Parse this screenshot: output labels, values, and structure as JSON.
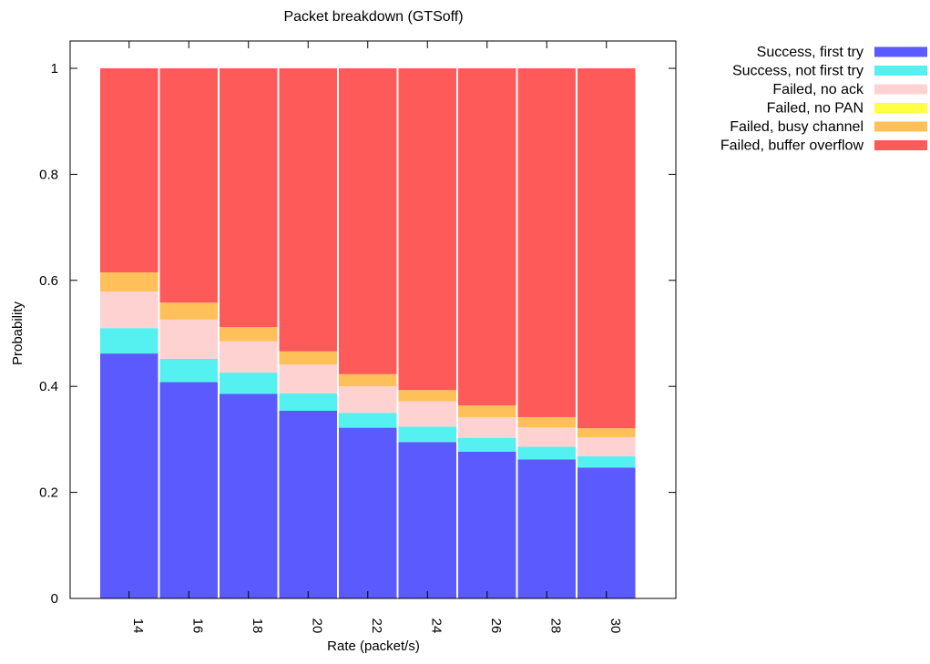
{
  "chart_data": {
    "type": "bar",
    "stacked": true,
    "title": "Packet breakdown (GTSoff)",
    "xlabel": "Rate (packet/s)",
    "ylabel": "Probability",
    "ylim": [
      0,
      1
    ],
    "yticks": [
      0,
      0.2,
      0.4,
      0.6,
      0.8,
      1
    ],
    "ytick_labels": [
      "0",
      "0.2",
      "0.4",
      "0.6",
      "0.8",
      "1"
    ],
    "categories": [
      "14",
      "16",
      "18",
      "20",
      "22",
      "24",
      "26",
      "28",
      "30"
    ],
    "grid": false,
    "legend_position": "outside-top-right",
    "series": [
      {
        "name": "Success, first try",
        "color": "#5a5aff",
        "values": [
          0.462,
          0.408,
          0.386,
          0.354,
          0.322,
          0.295,
          0.277,
          0.262,
          0.247
        ]
      },
      {
        "name": "Success, not first try",
        "color": "#55f0f0",
        "values": [
          0.048,
          0.044,
          0.04,
          0.033,
          0.028,
          0.029,
          0.026,
          0.024,
          0.021
        ]
      },
      {
        "name": "Failed, no ack",
        "color": "#ffd2d2",
        "values": [
          0.069,
          0.074,
          0.059,
          0.054,
          0.05,
          0.048,
          0.039,
          0.037,
          0.036
        ]
      },
      {
        "name": "Failed, no PAN",
        "color": "#ffff44",
        "values": [
          0,
          0,
          0,
          0,
          0,
          0,
          0,
          0,
          0
        ]
      },
      {
        "name": "Failed, busy channel",
        "color": "#ffc05a",
        "values": [
          0.036,
          0.032,
          0.027,
          0.025,
          0.023,
          0.021,
          0.022,
          0.019,
          0.017
        ]
      },
      {
        "name": "Failed, buffer overflow",
        "color": "#ff5a5a",
        "values": [
          0.385,
          0.442,
          0.488,
          0.534,
          0.577,
          0.607,
          0.636,
          0.658,
          0.679
        ]
      }
    ]
  }
}
